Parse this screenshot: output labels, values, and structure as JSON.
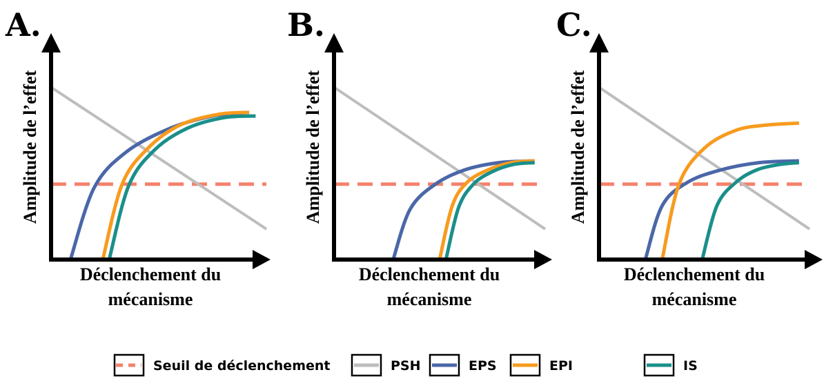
{
  "legend": [
    {
      "key": "threshold",
      "label": "Seuil de déclenchement",
      "color": "#F4826B",
      "dashed": true
    },
    {
      "key": "psh",
      "label": "PSH",
      "color": "#BDBDBD",
      "dashed": false
    },
    {
      "key": "eps",
      "label": "EPS",
      "color": "#4A67A8",
      "dashed": false
    },
    {
      "key": "epi",
      "label": "EPI",
      "color": "#F79B1E",
      "dashed": false
    },
    {
      "key": "is",
      "label": "IS",
      "color": "#1A8F8A",
      "dashed": false
    }
  ],
  "chart_data": [
    {
      "type": "line",
      "panel_label": "A.",
      "xlabel": [
        "Déclenchement du",
        "mécanisme"
      ],
      "ylabel": "Amplitude de l’effet",
      "grid": false,
      "legend_placement": "bottom",
      "series": [
        {
          "key": "threshold",
          "x": [
            0,
            1
          ],
          "y": [
            0.42,
            0.42
          ]
        },
        {
          "key": "psh",
          "x": [
            0,
            1
          ],
          "y": [
            0.96,
            0.17
          ]
        },
        {
          "key": "eps",
          "x": [
            0.09,
            0.2,
            0.35,
            0.55,
            0.75,
            0.92
          ],
          "y": [
            0,
            0.4,
            0.6,
            0.73,
            0.8,
            0.82
          ]
        },
        {
          "key": "epi",
          "x": [
            0.24,
            0.33,
            0.45,
            0.6,
            0.78,
            0.92
          ],
          "y": [
            0,
            0.42,
            0.62,
            0.75,
            0.81,
            0.82
          ]
        },
        {
          "key": "is",
          "x": [
            0.27,
            0.36,
            0.48,
            0.63,
            0.8,
            0.95
          ],
          "y": [
            0,
            0.41,
            0.61,
            0.73,
            0.79,
            0.8
          ]
        }
      ]
    },
    {
      "type": "line",
      "panel_label": "B.",
      "xlabel": [
        "Déclenchement du",
        "mécanisme"
      ],
      "ylabel": "Amplitude de l’effet",
      "grid": false,
      "legend_placement": "bottom",
      "series": [
        {
          "key": "threshold",
          "x": [
            0,
            1
          ],
          "y": [
            0.42,
            0.42
          ]
        },
        {
          "key": "psh",
          "x": [
            0,
            1
          ],
          "y": [
            0.96,
            0.17
          ]
        },
        {
          "key": "eps",
          "x": [
            0.28,
            0.36,
            0.48,
            0.62,
            0.78,
            0.95
          ],
          "y": [
            0,
            0.28,
            0.42,
            0.5,
            0.54,
            0.55
          ]
        },
        {
          "key": "epi",
          "x": [
            0.5,
            0.56,
            0.63,
            0.73,
            0.84,
            0.95
          ],
          "y": [
            0,
            0.3,
            0.43,
            0.5,
            0.54,
            0.55
          ]
        },
        {
          "key": "is",
          "x": [
            0.53,
            0.59,
            0.66,
            0.75,
            0.85,
            0.95
          ],
          "y": [
            0,
            0.29,
            0.42,
            0.49,
            0.53,
            0.54
          ]
        }
      ]
    },
    {
      "type": "line",
      "panel_label": "C.",
      "xlabel": [
        "Déclenchement du",
        "mécanisme"
      ],
      "ylabel": "Amplitude de l’effet",
      "grid": false,
      "legend_placement": "bottom",
      "series": [
        {
          "key": "threshold",
          "x": [
            0,
            1
          ],
          "y": [
            0.42,
            0.42
          ]
        },
        {
          "key": "psh",
          "x": [
            0,
            1
          ],
          "y": [
            0.96,
            0.17
          ]
        },
        {
          "key": "eps",
          "x": [
            0.22,
            0.3,
            0.42,
            0.58,
            0.76,
            0.95
          ],
          "y": [
            0,
            0.3,
            0.43,
            0.5,
            0.54,
            0.55
          ]
        },
        {
          "key": "epi",
          "x": [
            0.3,
            0.38,
            0.5,
            0.65,
            0.8,
            0.95
          ],
          "y": [
            0,
            0.42,
            0.62,
            0.72,
            0.75,
            0.76
          ]
        },
        {
          "key": "is",
          "x": [
            0.49,
            0.56,
            0.65,
            0.75,
            0.86,
            0.95
          ],
          "y": [
            0,
            0.3,
            0.43,
            0.5,
            0.53,
            0.54
          ]
        }
      ]
    }
  ]
}
